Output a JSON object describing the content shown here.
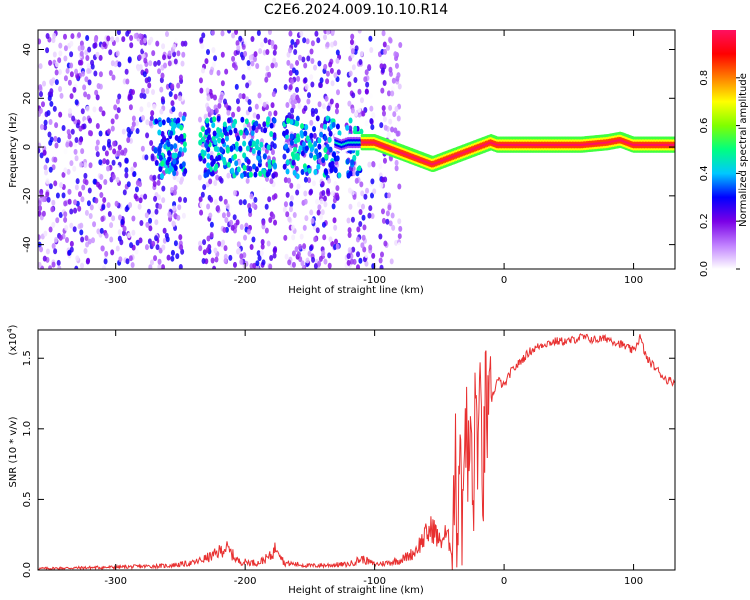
{
  "figure": {
    "title": "C2E6.2024.009.10.10.R14"
  },
  "colors": {
    "signal": "#e83030",
    "axis": "#000000"
  },
  "colorbar": {
    "label": "Normalized spectral amplitude",
    "ticks": [
      "0.0",
      "0.2",
      "0.4",
      "0.6",
      "0.8"
    ],
    "tick_values": [
      0.0,
      0.2,
      0.4,
      0.6,
      0.8
    ],
    "range": [
      0,
      1
    ],
    "colormap": [
      "#ffffff",
      "#c080ff",
      "#7a00e6",
      "#0000ff",
      "#00c8ff",
      "#00ff80",
      "#80ff00",
      "#ffff00",
      "#ff8000",
      "#ff0000",
      "#ff1060"
    ]
  },
  "chart_data": [
    {
      "type": "heatmap",
      "title": "C2E6.2024.009.10.10.R14",
      "xlabel": "Height of straight line (km)",
      "ylabel": "Frequency (Hz)",
      "xlim": [
        -360,
        132
      ],
      "ylim": [
        -50,
        48
      ],
      "xticks": [
        "-300",
        "-200",
        "-100",
        "0",
        "100"
      ],
      "xtick_values": [
        -300,
        -200,
        -100,
        0,
        100
      ],
      "yticks": [
        "-40",
        "-20",
        "0",
        "20",
        "40"
      ],
      "ytick_values": [
        -40,
        -20,
        0,
        20,
        40
      ],
      "ridge": {
        "x": [
          -130,
          -125,
          -120,
          -100,
          -95,
          -90,
          -85,
          -80,
          -75,
          -70,
          -65,
          -60,
          -55,
          -50,
          -45,
          -40,
          -35,
          -30,
          -25,
          -20,
          -15,
          -10,
          -5,
          0,
          20,
          40,
          60,
          80,
          90,
          95,
          100,
          105,
          110,
          132
        ],
        "y": [
          2,
          1,
          2,
          2,
          1,
          0,
          -1,
          -2,
          -3,
          -4,
          -5,
          -6,
          -7,
          -6,
          -5,
          -4,
          -3,
          -2,
          -1,
          0,
          1,
          2,
          1,
          1,
          1,
          1,
          1,
          2,
          3,
          2,
          1,
          1,
          1,
          1
        ],
        "value": 1.0
      },
      "background_noise": {
        "x_range": [
          -360,
          -80
        ],
        "y_range": [
          -50,
          48
        ],
        "value_range": [
          0.0,
          0.3
        ]
      }
    },
    {
      "type": "line",
      "xlabel": "Height of straight line (km)",
      "ylabel": "SNR (10 * v/v)",
      "y_exponent_label": "(x10",
      "y_exponent_power": "4",
      "y_exponent_close": ")",
      "xlim": [
        -360,
        132
      ],
      "ylim": [
        0,
        1.7
      ],
      "xticks": [
        "-300",
        "-200",
        "-100",
        "0",
        "100"
      ],
      "xtick_values": [
        -300,
        -200,
        -100,
        0,
        100
      ],
      "yticks": [
        "0.0",
        "0.5",
        "1.0",
        "1.5"
      ],
      "ytick_values": [
        0.0,
        0.5,
        1.0,
        1.5
      ],
      "series": [
        {
          "x": [
            -360,
            -300,
            -260,
            -240,
            -225,
            -215,
            -205,
            -190,
            -180,
            -175,
            -170,
            -150,
            -120,
            -110,
            -100,
            -90,
            -80,
            -70,
            -60,
            -55,
            -50,
            -45,
            -40,
            -38,
            -36,
            -34,
            -32,
            -30,
            -28,
            -26,
            -24,
            -22,
            -20,
            -18,
            -16,
            -14,
            -12,
            -10,
            -5,
            0,
            5,
            10,
            15,
            20,
            30,
            40,
            50,
            60,
            70,
            80,
            90,
            100,
            105,
            110,
            115,
            120,
            125,
            132
          ],
          "y": [
            0.01,
            0.02,
            0.03,
            0.05,
            0.1,
            0.16,
            0.06,
            0.05,
            0.1,
            0.18,
            0.05,
            0.03,
            0.04,
            0.08,
            0.04,
            0.05,
            0.07,
            0.12,
            0.25,
            0.3,
            0.2,
            0.25,
            0.15,
            0.8,
            0.3,
            1.1,
            0.2,
            1.3,
            0.6,
            1.0,
            0.4,
            1.2,
            0.9,
            1.1,
            0.6,
            1.3,
            0.9,
            1.2,
            1.35,
            1.3,
            1.4,
            1.45,
            1.5,
            1.55,
            1.6,
            1.62,
            1.62,
            1.65,
            1.63,
            1.64,
            1.6,
            1.55,
            1.65,
            1.5,
            1.45,
            1.4,
            1.35,
            1.33
          ]
        }
      ]
    }
  ]
}
